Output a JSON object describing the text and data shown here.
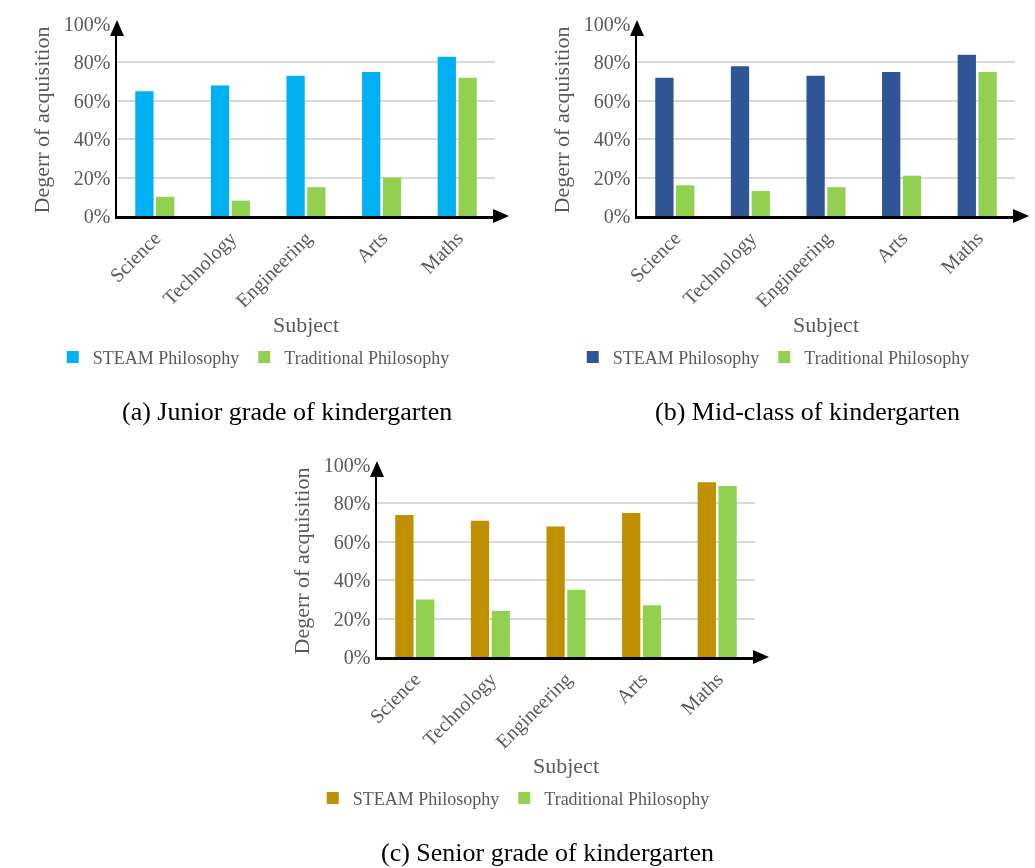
{
  "chart_data": [
    {
      "type": "bar",
      "xlabel": "Subject",
      "ylabel": "Degerr of acquisition",
      "categories": [
        "Science",
        "Technology",
        "Engineering",
        "Arts",
        "Maths"
      ],
      "series": [
        {
          "name": "STEAM Philosophy",
          "color": "#00b0f0",
          "values": [
            65,
            68,
            73,
            75,
            83
          ]
        },
        {
          "name": "Traditional Philosophy",
          "color": "#92d050",
          "values": [
            10,
            8,
            15,
            20,
            72
          ]
        }
      ],
      "ylim": [
        0,
        100
      ],
      "yticks": [
        {
          "value": 0,
          "label": "0%"
        },
        {
          "value": 20,
          "label": "20%"
        },
        {
          "value": 40,
          "label": "40%"
        },
        {
          "value": 60,
          "label": "60%"
        },
        {
          "value": 80,
          "label": "80%"
        },
        {
          "value": 100,
          "label": "100%"
        }
      ],
      "grid": "y",
      "legend": "bottom",
      "annotations": [
        "(a) Junior grade of kindergarten"
      ]
    },
    {
      "type": "bar",
      "xlabel": "Subject",
      "ylabel": "Degerr of acquisition",
      "categories": [
        "Science",
        "Technology",
        "Engineering",
        "Arts",
        "Maths"
      ],
      "series": [
        {
          "name": "STEAM Philosophy",
          "color": "#2f5597",
          "values": [
            72,
            78,
            73,
            75,
            84
          ]
        },
        {
          "name": "Traditional Philosophy",
          "color": "#92d050",
          "values": [
            16,
            13,
            15,
            21,
            75
          ]
        }
      ],
      "ylim": [
        0,
        100
      ],
      "yticks": [
        {
          "value": 0,
          "label": "0%"
        },
        {
          "value": 20,
          "label": "20%"
        },
        {
          "value": 40,
          "label": "40%"
        },
        {
          "value": 60,
          "label": "60%"
        },
        {
          "value": 80,
          "label": "80%"
        },
        {
          "value": 100,
          "label": "100%"
        }
      ],
      "grid": "y",
      "legend": "bottom",
      "annotations": [
        "(b) Mid-class of kindergarten"
      ]
    },
    {
      "type": "bar",
      "xlabel": "Subject",
      "ylabel": "Degerr of acquisition",
      "categories": [
        "Science",
        "Technology",
        "Engineering",
        "Arts",
        "Maths"
      ],
      "series": [
        {
          "name": "STEAM Philosophy",
          "color": "#bf9000",
          "values": [
            74,
            71,
            68,
            75,
            91
          ]
        },
        {
          "name": "Traditional Philosophy",
          "color": "#92d050",
          "values": [
            30,
            24,
            35,
            27,
            89
          ]
        }
      ],
      "ylim": [
        0,
        100
      ],
      "yticks": [
        {
          "value": 0,
          "label": "0%"
        },
        {
          "value": 20,
          "label": "20%"
        },
        {
          "value": 40,
          "label": "40%"
        },
        {
          "value": 60,
          "label": "60%"
        },
        {
          "value": 80,
          "label": "80%"
        },
        {
          "value": 100,
          "label": "100%"
        }
      ],
      "grid": "y",
      "legend": "bottom",
      "annotations": [
        "(c) Senior grade of kindergarten"
      ]
    }
  ]
}
